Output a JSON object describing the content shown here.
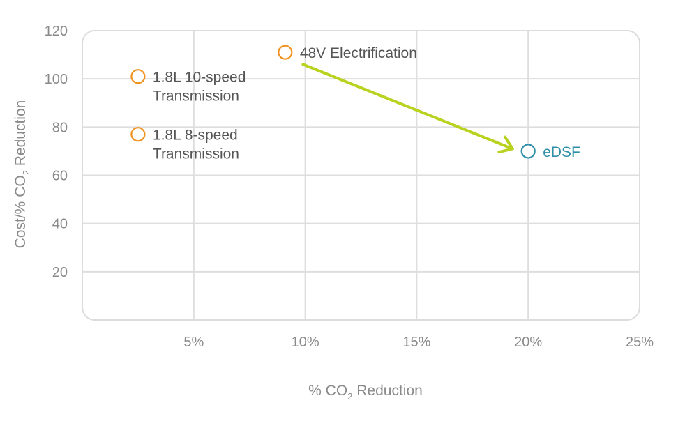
{
  "chart_data": {
    "type": "scatter",
    "xlabel_parts": [
      "% CO",
      "2",
      " Reduction"
    ],
    "ylabel_parts": [
      "Cost/% CO",
      "2",
      " Reduction"
    ],
    "xlim": [
      0,
      0.25
    ],
    "ylim": [
      0,
      120
    ],
    "xticks": [
      0.05,
      0.1,
      0.15,
      0.2,
      0.25
    ],
    "xtick_labels": [
      "5%",
      "10%",
      "15%",
      "20%",
      "25%"
    ],
    "yticks": [
      20,
      40,
      60,
      80,
      100,
      120
    ],
    "ytick_labels": [
      "20",
      "40",
      "60",
      "80",
      "100",
      "120"
    ],
    "grid": true,
    "points": [
      {
        "label_lines": [
          "1.8L 10-speed",
          "Transmission"
        ],
        "x": 0.025,
        "y": 101,
        "color": "#f0921e"
      },
      {
        "label_lines": [
          "1.8L 8-speed",
          "Transmission"
        ],
        "x": 0.025,
        "y": 77,
        "color": "#f0921e"
      },
      {
        "label_lines": [
          "48V Electrification"
        ],
        "x": 0.091,
        "y": 111,
        "color": "#f0921e"
      },
      {
        "label_lines": [
          "eDSF"
        ],
        "x": 0.2,
        "y": 70,
        "color": "#2e8fa8"
      }
    ],
    "arrow": {
      "from": {
        "x": 0.099,
        "y": 106
      },
      "to": {
        "x": 0.193,
        "y": 71
      },
      "color": "#b9d21f"
    },
    "label_colors": {
      "orange": "#555555",
      "teal": "#2e8fa8"
    }
  }
}
